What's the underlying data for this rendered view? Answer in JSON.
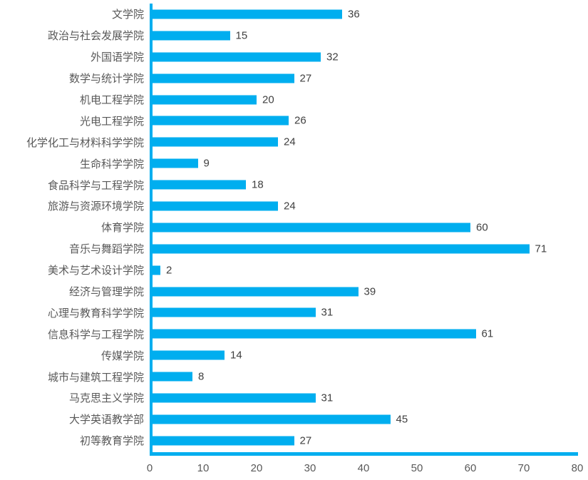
{
  "chart_data": {
    "type": "bar",
    "orientation": "horizontal",
    "title": "",
    "xlabel": "",
    "ylabel": "",
    "categories": [
      "文学院",
      "政治与社会发展学院",
      "外国语学院",
      "数学与统计学院",
      "机电工程学院",
      "光电工程学院",
      "化学化工与材料科学学院",
      "生命科学学院",
      "食品科学与工程学院",
      "旅游与资源环境学院",
      "体育学院",
      "音乐与舞蹈学院",
      "美术与艺术设计学院",
      "经济与管理学院",
      "心理与教育科学学院",
      "信息科学与工程学院",
      "传媒学院",
      "城市与建筑工程学院",
      "马克思主义学院",
      "大学英语教学部",
      "初等教育学院"
    ],
    "values": [
      36,
      15,
      32,
      27,
      20,
      26,
      24,
      9,
      18,
      24,
      60,
      71,
      2,
      39,
      31,
      61,
      14,
      8,
      31,
      45,
      27
    ],
    "data_labels_visible": true,
    "xlim": [
      0,
      80
    ],
    "x_ticks": [
      "0",
      "10",
      "20",
      "30",
      "40",
      "50",
      "60",
      "70",
      "80"
    ],
    "grid": false,
    "legend": false,
    "colors": {
      "bar": "#00AEEF",
      "axis_line": "#00AEEF",
      "category_label": "#595959",
      "tick_label": "#595959",
      "value_label": "#404040",
      "background": "#FFFFFF"
    }
  }
}
